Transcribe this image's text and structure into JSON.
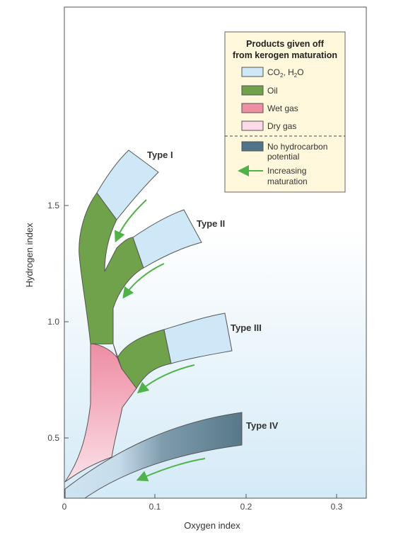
{
  "axes": {
    "x_label": "Oxygen index",
    "y_label": "Hydrogen index",
    "x_ticks": [
      "0",
      "0.1",
      "0.2",
      "0.3"
    ],
    "y_ticks": [
      "0.5",
      "1.0",
      "1.5"
    ]
  },
  "kerogen_types": [
    {
      "label": "Type I"
    },
    {
      "label": "Type II"
    },
    {
      "label": "Type III"
    },
    {
      "label": "Type IV"
    }
  ],
  "legend": {
    "title_line1": "Products given off",
    "title_line2": "from kerogen maturation",
    "items": [
      {
        "label_main": "CO",
        "label_sub": "2",
        "label_mid": ", H",
        "label_sub2": "2",
        "label_end": "O",
        "color": "#cfe8f7"
      },
      {
        "label": "Oil",
        "color": "#6fa24a"
      },
      {
        "label": "Wet gas",
        "color": "#ef8fa4"
      },
      {
        "label": "Dry gas",
        "color": "#fadbe7"
      }
    ],
    "no_hc": {
      "line1": "No hydrocarbon",
      "line2": "potential",
      "color": "#4f7388"
    },
    "maturation": {
      "line1": "Increasing",
      "line2": "maturation",
      "arrow_color": "#4fb34a"
    }
  },
  "colors": {
    "co2_h2o": "#cfe8f7",
    "oil": "#6fa24a",
    "wet_gas": "#ef8fa4",
    "dry_gas": "#fadbe7",
    "no_hydrocarbon": "#4f7388",
    "arrow": "#4fb34a",
    "legend_bg": "#fff8dc",
    "plot_bg_bottom": "#d6ecf8"
  }
}
